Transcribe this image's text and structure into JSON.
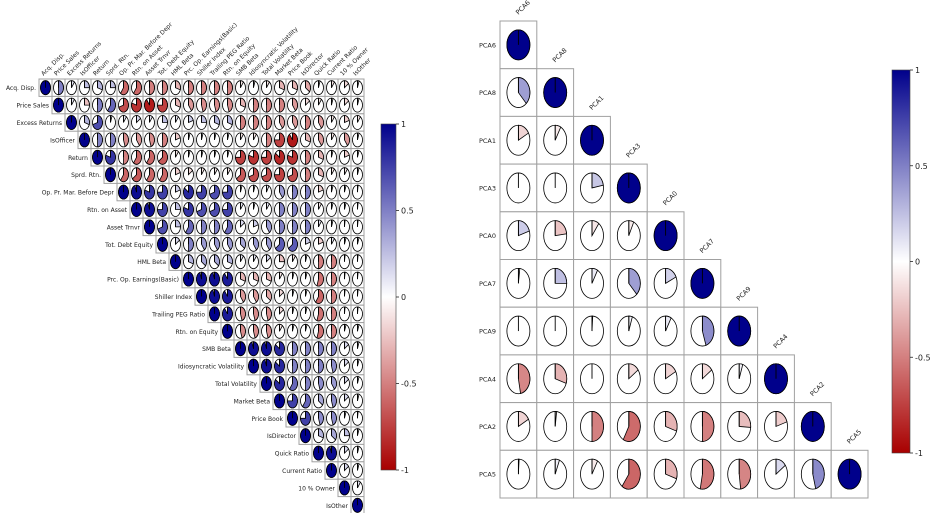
{
  "chart_data": [
    {
      "type": "heatmap",
      "style": "pie-correlogram",
      "triangle": "upper",
      "title": "",
      "variables": [
        "Acq. Disp.",
        "Price Sales",
        "Excess Returns",
        "IsOfficer",
        "Return",
        "Sprd. Rtn.",
        "Op. Pr. Mar. Before Depr",
        "Rtn. on Asset",
        "Asset Trnvr",
        "Tot. Debt Equity",
        "HML Beta",
        "Prc. Op. Earnings(Basic)",
        "Shiller Index",
        "Trailing PEG Ratio",
        "Rtn. on Equity",
        "SMB Beta",
        "Idiosyncratic Volatility",
        "Total Volatility",
        "Market Beta",
        "Price Book",
        "IsDirector",
        "Quick Ratio",
        "Current Ratio",
        "10 % Owner",
        "IsOther"
      ],
      "rows": [
        [
          1,
          0.5,
          0.1,
          0.25,
          0.3,
          0.25,
          -0.6,
          -0.6,
          -0.5,
          -0.5,
          -0.3,
          -0.5,
          -0.5,
          -0.5,
          -0.5,
          -0.1,
          -0.05,
          -0.1,
          -0.3,
          -0.3,
          -0.35,
          -0.05,
          -0.1,
          -0.15,
          -0.05
        ],
        [
          1,
          0.1,
          -0.25,
          0.5,
          0.6,
          -0.7,
          -0.8,
          -0.9,
          -0.75,
          -0.3,
          -0.4,
          -0.45,
          -0.45,
          -0.45,
          -0.3,
          -0.5,
          -0.5,
          -0.5,
          -0.4,
          -0.15,
          -0.1,
          -0.05,
          -0.15,
          -0.05
        ],
        [
          1,
          0.3,
          0.7,
          0.05,
          0.1,
          0.15,
          0.1,
          0.25,
          0.1,
          0.2,
          0.25,
          0.3,
          0.3,
          -0.5,
          -0.5,
          -0.5,
          -0.4,
          -0.4,
          -0.5,
          -0.4,
          -0.1,
          -0.2,
          -0.1
        ],
        [
          1,
          0.5,
          0.5,
          -0.45,
          -0.4,
          -0.45,
          -0.5,
          -0.2,
          0.05,
          0.05,
          0.05,
          0.05,
          -0.1,
          -0.1,
          -0.5,
          -0.75,
          -0.9,
          -0.3,
          -0.4,
          -0.1,
          -0.4,
          -0.05
        ],
        [
          1,
          0.8,
          -0.5,
          -0.6,
          -0.6,
          -0.65,
          -0.1,
          -0.05,
          -0.05,
          -0.05,
          -0.05,
          -0.75,
          -0.8,
          -0.75,
          -0.85,
          -0.8,
          -0.5,
          -0.3,
          -0.05,
          -0.2,
          -0.05
        ],
        [
          1,
          -0.6,
          -0.65,
          -0.6,
          -0.6,
          -0.2,
          -0.15,
          -0.1,
          -0.1,
          -0.1,
          -0.65,
          -0.7,
          -0.7,
          -0.75,
          -0.7,
          -0.5,
          -0.3,
          -0.1,
          -0.1,
          -0.05
        ],
        [
          1,
          0.95,
          0.8,
          0.75,
          0.2,
          0.85,
          0.75,
          0.7,
          0.75,
          0.05,
          0.05,
          0.08,
          0.4,
          0.5,
          0.5,
          -0.2,
          0.05,
          0.05,
          0.02
        ],
        [
          1,
          0.95,
          0.75,
          0.25,
          0.8,
          0.7,
          0.7,
          0.75,
          0.1,
          0.05,
          0.1,
          0.5,
          0.5,
          0.5,
          -0.1,
          0.05,
          0.05,
          0.02
        ],
        [
          1,
          0.7,
          0.25,
          0.6,
          0.5,
          0.5,
          0.6,
          0.15,
          0.2,
          0.4,
          0.5,
          0.5,
          0.5,
          0.1,
          0.05,
          0.02,
          0.02
        ],
        [
          1,
          0.15,
          0.5,
          0.4,
          0.4,
          0.4,
          0.35,
          0.4,
          0.4,
          0.65,
          0.65,
          0.2,
          -0.2,
          0.1,
          0.05,
          0.05
        ],
        [
          1,
          0.3,
          0.35,
          0.35,
          0.3,
          0.1,
          0.1,
          0.15,
          -0.25,
          -0.1,
          -0.05,
          -0.5,
          -0.5,
          0.02,
          0.02
        ],
        [
          1,
          0.95,
          0.95,
          0.9,
          -0.3,
          -0.3,
          -0.3,
          -0.1,
          -0.05,
          -0.05,
          -0.55,
          -0.5,
          0.02,
          0.02
        ],
        [
          1,
          0.95,
          0.9,
          -0.4,
          -0.4,
          -0.35,
          -0.15,
          -0.05,
          -0.05,
          -0.6,
          -0.5,
          0.02,
          0.02
        ],
        [
          1,
          0.9,
          -0.45,
          -0.45,
          -0.45,
          -0.15,
          -0.05,
          -0.05,
          -0.55,
          -0.5,
          0.02,
          0.02
        ],
        [
          1,
          -0.45,
          -0.45,
          -0.45,
          -0.1,
          -0.05,
          -0.05,
          -0.55,
          -0.5,
          0.05,
          0.05
        ],
        [
          1,
          0.95,
          0.95,
          0.85,
          0.5,
          0.5,
          0.5,
          0.5,
          0.15,
          0.05
        ],
        [
          1,
          0.95,
          0.85,
          0.5,
          0.5,
          0.5,
          0.45,
          0.15,
          0.05
        ],
        [
          1,
          0.85,
          0.6,
          0.5,
          0.45,
          0.4,
          0.15,
          0.05
        ],
        [
          1,
          0.75,
          0.6,
          0.35,
          0.45,
          0.15,
          0.05
        ],
        [
          1,
          0.75,
          0.45,
          0.45,
          0.05,
          0.02
        ],
        [
          1,
          0.3,
          0.35,
          0.25,
          0.05
        ],
        [
          1,
          0.95,
          0.15,
          0.05
        ],
        [
          1,
          0.15,
          0.05
        ],
        [
          1,
          0.1
        ],
        [
          1
        ]
      ],
      "colorbar": {
        "ticks": [
          "1",
          "0.5",
          "0",
          "-0.5",
          "-1"
        ],
        "range": [
          -1,
          1
        ]
      }
    },
    {
      "type": "heatmap",
      "style": "pie-correlogram",
      "triangle": "lower",
      "title": "",
      "variables": [
        "PCA6",
        "PCA8",
        "PCA1",
        "PCA3",
        "PCA0",
        "PCA7",
        "PCA9",
        "PCA4",
        "PCA2",
        "PCA5"
      ],
      "rows": [
        [
          1
        ],
        [
          0.38,
          1
        ],
        [
          -0.17,
          -0.08,
          1
        ],
        [
          0,
          0,
          0.22,
          1
        ],
        [
          0.2,
          -0.23,
          -0.1,
          -0.07,
          1
        ],
        [
          0.02,
          0.25,
          0.08,
          0.38,
          0.18,
          1
        ],
        [
          0,
          0,
          0.01,
          0.05,
          0.08,
          0.45,
          1
        ],
        [
          -0.47,
          -0.3,
          0,
          -0.15,
          -0.17,
          -0.15,
          0.05,
          1
        ],
        [
          -0.17,
          -0.02,
          -0.5,
          -0.58,
          -0.3,
          -0.5,
          -0.26,
          -0.2,
          1
        ],
        [
          0.01,
          0.06,
          -0.08,
          -0.6,
          -0.3,
          -0.53,
          -0.48,
          0.15,
          0.46,
          1
        ]
      ],
      "colorbar": {
        "ticks": [
          "1",
          "0.5",
          "0",
          "-0.5",
          "-1"
        ],
        "range": [
          -1,
          1
        ]
      }
    }
  ],
  "colors": {
    "positive": "#00008b",
    "zero": "#ffffff",
    "negative": "#a80000",
    "grid": "#a0a0a0"
  }
}
